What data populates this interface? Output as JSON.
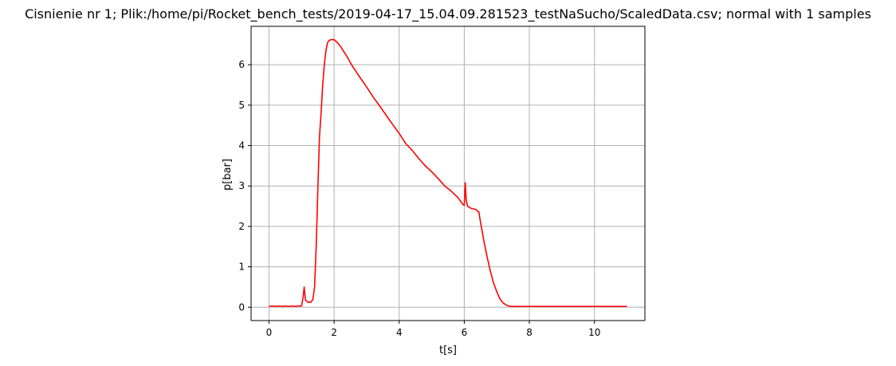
{
  "chart_data": {
    "type": "line",
    "title": "Cisnienie nr 1; Plik:/home/pi/Rocket_bench_tests/2019-04-17_15.04.09.281523_testNaSucho/ScaledData.csv; normal with 1 samples",
    "xlabel": "t[s]",
    "ylabel": "p[bar]",
    "xlim": [
      -0.55,
      11.55
    ],
    "ylim": [
      -0.33,
      6.95
    ],
    "xticks": [
      0,
      2,
      4,
      6,
      8,
      10
    ],
    "yticks": [
      0,
      1,
      2,
      3,
      4,
      5,
      6
    ],
    "grid": true,
    "legend": "none",
    "series": [
      {
        "color": "#ff0000",
        "points": [
          [
            0.0,
            0.02
          ],
          [
            0.1,
            0.03
          ],
          [
            0.2,
            0.02
          ],
          [
            0.3,
            0.03
          ],
          [
            0.4,
            0.02
          ],
          [
            0.5,
            0.03
          ],
          [
            0.6,
            0.02
          ],
          [
            0.7,
            0.03
          ],
          [
            0.8,
            0.02
          ],
          [
            0.9,
            0.03
          ],
          [
            1.0,
            0.03
          ],
          [
            1.05,
            0.25
          ],
          [
            1.08,
            0.5
          ],
          [
            1.12,
            0.18
          ],
          [
            1.2,
            0.12
          ],
          [
            1.3,
            0.13
          ],
          [
            1.35,
            0.2
          ],
          [
            1.4,
            0.5
          ],
          [
            1.45,
            1.5
          ],
          [
            1.5,
            2.9
          ],
          [
            1.55,
            4.2
          ],
          [
            1.6,
            4.8
          ],
          [
            1.65,
            5.5
          ],
          [
            1.7,
            6.0
          ],
          [
            1.75,
            6.35
          ],
          [
            1.8,
            6.55
          ],
          [
            1.85,
            6.6
          ],
          [
            1.9,
            6.62
          ],
          [
            2.0,
            6.62
          ],
          [
            2.1,
            6.55
          ],
          [
            2.2,
            6.45
          ],
          [
            2.3,
            6.32
          ],
          [
            2.4,
            6.2
          ],
          [
            2.5,
            6.05
          ],
          [
            2.6,
            5.92
          ],
          [
            2.8,
            5.68
          ],
          [
            3.0,
            5.45
          ],
          [
            3.2,
            5.2
          ],
          [
            3.4,
            4.98
          ],
          [
            3.6,
            4.75
          ],
          [
            3.8,
            4.52
          ],
          [
            4.0,
            4.3
          ],
          [
            4.2,
            4.05
          ],
          [
            4.4,
            3.88
          ],
          [
            4.6,
            3.68
          ],
          [
            4.8,
            3.5
          ],
          [
            5.0,
            3.35
          ],
          [
            5.2,
            3.18
          ],
          [
            5.4,
            3.0
          ],
          [
            5.6,
            2.87
          ],
          [
            5.8,
            2.72
          ],
          [
            5.95,
            2.55
          ],
          [
            6.0,
            2.52
          ],
          [
            6.03,
            3.08
          ],
          [
            6.06,
            2.65
          ],
          [
            6.1,
            2.5
          ],
          [
            6.2,
            2.45
          ],
          [
            6.35,
            2.42
          ],
          [
            6.45,
            2.35
          ],
          [
            6.5,
            2.1
          ],
          [
            6.6,
            1.65
          ],
          [
            6.7,
            1.25
          ],
          [
            6.8,
            0.9
          ],
          [
            6.9,
            0.6
          ],
          [
            7.0,
            0.38
          ],
          [
            7.1,
            0.2
          ],
          [
            7.2,
            0.1
          ],
          [
            7.3,
            0.05
          ],
          [
            7.4,
            0.02
          ],
          [
            7.6,
            0.02
          ],
          [
            7.8,
            0.02
          ],
          [
            8.0,
            0.02
          ],
          [
            8.5,
            0.02
          ],
          [
            9.0,
            0.02
          ],
          [
            9.5,
            0.02
          ],
          [
            10.0,
            0.02
          ],
          [
            10.5,
            0.02
          ],
          [
            11.0,
            0.02
          ]
        ]
      }
    ]
  }
}
